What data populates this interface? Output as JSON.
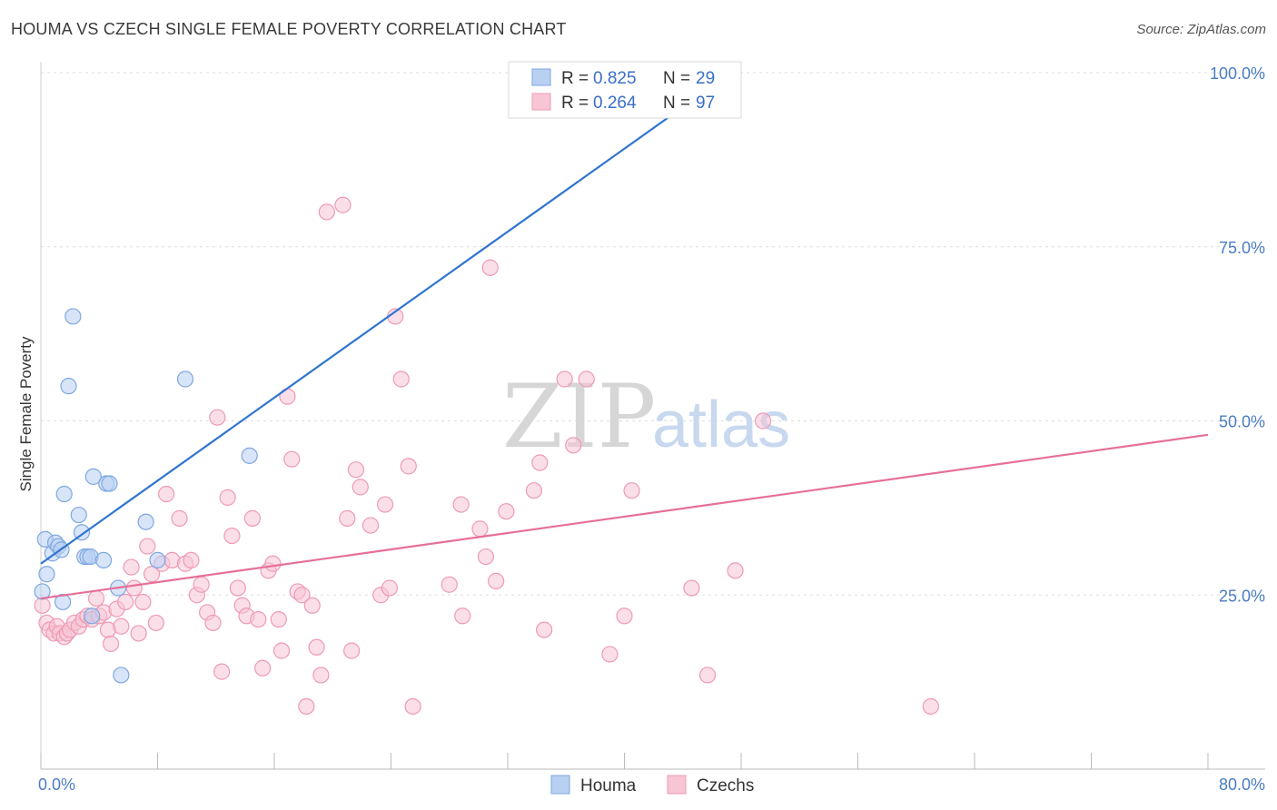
{
  "title": "HOUMA VS CZECH SINGLE FEMALE POVERTY CORRELATION CHART",
  "source": "Source: ZipAtlas.com",
  "watermark": {
    "zip": "ZIP",
    "atlas": "atlas"
  },
  "colors": {
    "houma_fill": "#b8d0f2",
    "houma_stroke": "#7ea7e0",
    "houma_line": "#2f74d0",
    "czech_fill": "#f8c5d5",
    "czech_stroke": "#ee9ab4",
    "czech_line": "#e66f98",
    "tick_text": "#4a7cc4"
  },
  "legend": {
    "rows": [
      {
        "r_label": "R =",
        "r_value": "0.825",
        "n_label": "N =",
        "n_value": "29"
      },
      {
        "r_label": "R =",
        "r_value": "0.264",
        "n_label": "N =",
        "n_value": "97"
      }
    ]
  },
  "bottom_legend": [
    "Houma",
    "Czechs"
  ],
  "chart_data": {
    "type": "scatter",
    "title": "HOUMA VS CZECH SINGLE FEMALE POVERTY CORRELATION CHART",
    "xlabel": "",
    "ylabel": "Single Female Poverty",
    "xlim": [
      0,
      80
    ],
    "ylim": [
      0,
      100
    ],
    "x_tick_labels": [
      "0.0%",
      "80.0%"
    ],
    "y_tick_labels": [
      "25.0%",
      "50.0%",
      "75.0%",
      "100.0%"
    ],
    "y_tick_values": [
      25,
      50,
      75,
      100
    ],
    "grid": true,
    "legend_position": "top-center",
    "series": [
      {
        "name": "Houma",
        "r": 0.825,
        "n": 29,
        "trend": {
          "x": [
            0,
            48
          ],
          "y": [
            29.5,
            101
          ]
        },
        "points": [
          [
            0.1,
            25.5
          ],
          [
            0.3,
            33
          ],
          [
            0.4,
            28
          ],
          [
            0.8,
            31
          ],
          [
            1.0,
            32.5
          ],
          [
            1.2,
            32
          ],
          [
            1.4,
            31.5
          ],
          [
            1.5,
            24
          ],
          [
            1.6,
            39.5
          ],
          [
            1.9,
            55
          ],
          [
            2.2,
            65
          ],
          [
            2.6,
            36.5
          ],
          [
            2.8,
            34
          ],
          [
            3.0,
            30.5
          ],
          [
            3.2,
            30.5
          ],
          [
            3.4,
            30.5
          ],
          [
            3.5,
            22
          ],
          [
            3.6,
            42
          ],
          [
            4.3,
            30
          ],
          [
            4.5,
            41
          ],
          [
            4.7,
            41
          ],
          [
            5.3,
            26
          ],
          [
            5.5,
            13.5
          ],
          [
            7.2,
            35.5
          ],
          [
            8.0,
            30
          ],
          [
            9.9,
            56
          ],
          [
            14.3,
            45
          ],
          [
            41.2,
            95
          ],
          [
            45.3,
            95
          ]
        ]
      },
      {
        "name": "Czechs",
        "r": 0.264,
        "n": 97,
        "trend": {
          "x": [
            0,
            80
          ],
          "y": [
            24.5,
            48
          ]
        },
        "points": [
          [
            0.1,
            23.5
          ],
          [
            0.4,
            21
          ],
          [
            0.6,
            20
          ],
          [
            0.9,
            19.5
          ],
          [
            1.1,
            20.5
          ],
          [
            1.3,
            19.5
          ],
          [
            1.6,
            19
          ],
          [
            1.8,
            19.5
          ],
          [
            2.0,
            20
          ],
          [
            2.3,
            21
          ],
          [
            2.6,
            20.5
          ],
          [
            2.9,
            21.5
          ],
          [
            3.2,
            22
          ],
          [
            3.5,
            21.5
          ],
          [
            3.8,
            24.5
          ],
          [
            4.0,
            22
          ],
          [
            4.3,
            22.5
          ],
          [
            4.6,
            20
          ],
          [
            4.8,
            18
          ],
          [
            5.2,
            23
          ],
          [
            5.5,
            20.5
          ],
          [
            5.8,
            24
          ],
          [
            6.2,
            29
          ],
          [
            6.4,
            26
          ],
          [
            6.7,
            19.5
          ],
          [
            7.0,
            24
          ],
          [
            7.3,
            32
          ],
          [
            7.6,
            28
          ],
          [
            7.9,
            21
          ],
          [
            8.3,
            29.5
          ],
          [
            8.6,
            39.5
          ],
          [
            9.0,
            30
          ],
          [
            9.5,
            36
          ],
          [
            9.9,
            29.5
          ],
          [
            10.3,
            30
          ],
          [
            10.7,
            25
          ],
          [
            11.0,
            26.5
          ],
          [
            11.4,
            22.5
          ],
          [
            11.8,
            21
          ],
          [
            12.1,
            50.5
          ],
          [
            12.4,
            14
          ],
          [
            12.8,
            39
          ],
          [
            13.1,
            33.5
          ],
          [
            13.5,
            26
          ],
          [
            13.8,
            23.5
          ],
          [
            14.1,
            22
          ],
          [
            14.5,
            36
          ],
          [
            14.9,
            21.5
          ],
          [
            15.2,
            14.5
          ],
          [
            15.6,
            28.5
          ],
          [
            15.9,
            29.5
          ],
          [
            16.3,
            21.5
          ],
          [
            16.5,
            17
          ],
          [
            16.9,
            53.5
          ],
          [
            17.2,
            44.5
          ],
          [
            17.6,
            25.5
          ],
          [
            17.9,
            25
          ],
          [
            18.2,
            9
          ],
          [
            18.6,
            23.5
          ],
          [
            18.9,
            17.5
          ],
          [
            19.2,
            13.5
          ],
          [
            19.6,
            80
          ],
          [
            20.7,
            81
          ],
          [
            21.0,
            36
          ],
          [
            21.3,
            17
          ],
          [
            21.6,
            43
          ],
          [
            21.9,
            40.5
          ],
          [
            22.6,
            35
          ],
          [
            23.3,
            25
          ],
          [
            23.6,
            38
          ],
          [
            23.9,
            26
          ],
          [
            24.3,
            65
          ],
          [
            24.7,
            56
          ],
          [
            25.2,
            43.5
          ],
          [
            25.5,
            9
          ],
          [
            28.0,
            26.5
          ],
          [
            28.8,
            38
          ],
          [
            28.9,
            22
          ],
          [
            30.1,
            34.5
          ],
          [
            30.5,
            30.5
          ],
          [
            30.8,
            72
          ],
          [
            31.2,
            27
          ],
          [
            31.9,
            37
          ],
          [
            33.8,
            40
          ],
          [
            34.2,
            44
          ],
          [
            34.5,
            20
          ],
          [
            35.9,
            56
          ],
          [
            36.5,
            46.5
          ],
          [
            37.4,
            56
          ],
          [
            39.0,
            16.5
          ],
          [
            40.0,
            22
          ],
          [
            40.5,
            40
          ],
          [
            44.6,
            26
          ],
          [
            45.7,
            13.5
          ],
          [
            47.6,
            28.5
          ],
          [
            49.5,
            50
          ],
          [
            61.0,
            9
          ]
        ]
      }
    ]
  }
}
